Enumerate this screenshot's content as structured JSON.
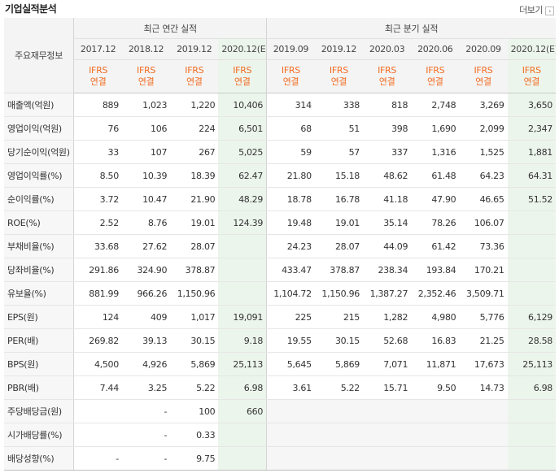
{
  "title": "기업실적분석",
  "more_label": "더보기",
  "header": {
    "label": "주요재무정보",
    "annual": "최근 연간 실적",
    "quarter": "최근 분기 실적",
    "periods": [
      "2017.12",
      "2018.12",
      "2019.12",
      "2020.12(E)",
      "2019.09",
      "2019.12",
      "2020.03",
      "2020.06",
      "2020.09",
      "2020.12(E)"
    ],
    "ifrs": "IFRS",
    "basis": "연결"
  },
  "rows": [
    {
      "label": "매출액(억원)",
      "values": [
        "889",
        "1,023",
        "1,220",
        "10,406",
        "314",
        "338",
        "818",
        "2,748",
        "3,269",
        "3,650"
      ]
    },
    {
      "label": "영업이익(억원)",
      "values": [
        "76",
        "106",
        "224",
        "6,501",
        "68",
        "51",
        "398",
        "1,690",
        "2,099",
        "2,347"
      ]
    },
    {
      "label": "당기순이익(억원)",
      "values": [
        "33",
        "107",
        "267",
        "5,025",
        "59",
        "57",
        "337",
        "1,316",
        "1,525",
        "1,881"
      ]
    },
    {
      "label": "영업이익률(%)",
      "values": [
        "8.50",
        "10.39",
        "18.39",
        "62.47",
        "21.80",
        "15.18",
        "48.62",
        "61.48",
        "64.23",
        "64.31"
      ]
    },
    {
      "label": "순이익률(%)",
      "values": [
        "3.72",
        "10.47",
        "21.90",
        "48.29",
        "18.78",
        "16.78",
        "41.18",
        "47.90",
        "46.65",
        "51.52"
      ]
    },
    {
      "label": "ROE(%)",
      "values": [
        "2.52",
        "8.76",
        "19.01",
        "124.39",
        "19.48",
        "19.01",
        "35.14",
        "78.26",
        "106.07",
        ""
      ]
    },
    {
      "label": "부채비율(%)",
      "values": [
        "33.68",
        "27.62",
        "28.07",
        "",
        "24.23",
        "28.07",
        "44.09",
        "61.42",
        "73.36",
        ""
      ]
    },
    {
      "label": "당좌비율(%)",
      "values": [
        "291.86",
        "324.90",
        "378.87",
        "",
        "433.47",
        "378.87",
        "238.34",
        "193.84",
        "170.21",
        ""
      ]
    },
    {
      "label": "유보율(%)",
      "values": [
        "881.99",
        "966.26",
        "1,150.96",
        "",
        "1,104.72",
        "1,150.96",
        "1,387.27",
        "2,352.46",
        "3,509.71",
        ""
      ]
    },
    {
      "label": "EPS(원)",
      "values": [
        "124",
        "409",
        "1,017",
        "19,091",
        "225",
        "215",
        "1,282",
        "4,980",
        "5,776",
        "6,129"
      ]
    },
    {
      "label": "PER(배)",
      "values": [
        "269.82",
        "39.13",
        "30.15",
        "9.18",
        "19.55",
        "30.15",
        "52.68",
        "16.83",
        "21.25",
        "28.58"
      ]
    },
    {
      "label": "BPS(원)",
      "values": [
        "4,500",
        "4,926",
        "5,869",
        "25,113",
        "5,645",
        "5,869",
        "7,071",
        "11,871",
        "17,673",
        "25,113"
      ]
    },
    {
      "label": "PBR(배)",
      "values": [
        "7.44",
        "3.25",
        "5.22",
        "6.98",
        "3.61",
        "5.22",
        "15.71",
        "9.50",
        "14.73",
        "6.98"
      ]
    },
    {
      "label": "주당배당금(원)",
      "values": [
        "",
        "-",
        "100",
        "660",
        "",
        "",
        "",
        "",
        "",
        ""
      ]
    },
    {
      "label": "시가배당률(%)",
      "values": [
        "",
        "-",
        "0.33",
        "",
        "",
        "",
        "",
        "",
        "",
        ""
      ]
    },
    {
      "label": "배당성향(%)",
      "values": [
        "-",
        "-",
        "9.75",
        "",
        "",
        "",
        "",
        "",
        "",
        ""
      ]
    }
  ]
}
